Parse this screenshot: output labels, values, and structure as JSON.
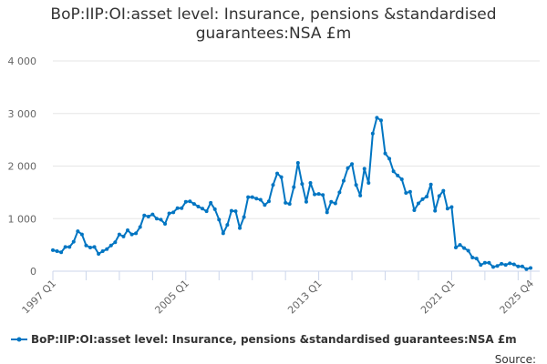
{
  "chart_data": {
    "type": "line",
    "title_line1": "BoP:IIP:OI:asset level: Insurance, pensions &standardised",
    "title_line2": "guarantees:NSA £m",
    "ylim": [
      0,
      4000
    ],
    "yticks": [
      0,
      1000,
      2000,
      3000,
      4000
    ],
    "ytick_labels": [
      "0",
      "1 000",
      "2 000",
      "3 000",
      "4 000"
    ],
    "x_start": "1997 Q1",
    "x_end": "2025 Q4",
    "xtick_labels": [
      {
        "label": "1997 Q1",
        "index": 0
      },
      {
        "label": "2005 Q1",
        "index": 32
      },
      {
        "label": "2013 Q1",
        "index": 64
      },
      {
        "label": "2021 Q1",
        "index": 96
      },
      {
        "label": "2025 Q4",
        "index": 115
      }
    ],
    "series": [
      {
        "name": "BoP:IIP:OI:asset level: Insurance, pensions &standardised guarantees:NSA £m",
        "color": "#0075c2",
        "values": [
          400,
          380,
          360,
          460,
          460,
          560,
          760,
          700,
          490,
          450,
          460,
          330,
          380,
          420,
          490,
          550,
          700,
          660,
          780,
          700,
          720,
          840,
          1060,
          1040,
          1080,
          1000,
          980,
          900,
          1100,
          1120,
          1200,
          1200,
          1320,
          1330,
          1280,
          1230,
          1190,
          1140,
          1300,
          1180,
          980,
          720,
          880,
          1150,
          1140,
          820,
          1030,
          1410,
          1410,
          1380,
          1360,
          1260,
          1330,
          1640,
          1860,
          1790,
          1300,
          1280,
          1600,
          2060,
          1660,
          1320,
          1680,
          1460,
          1470,
          1450,
          1120,
          1320,
          1290,
          1500,
          1720,
          1960,
          2040,
          1640,
          1440,
          1950,
          1680,
          2620,
          2920,
          2870,
          2240,
          2140,
          1900,
          1820,
          1750,
          1490,
          1510,
          1160,
          1290,
          1370,
          1420,
          1650,
          1150,
          1430,
          1530,
          1190,
          1220,
          450,
          500,
          440,
          390,
          260,
          240,
          120,
          160,
          160,
          80,
          100,
          140,
          120,
          150,
          130,
          90,
          90,
          40,
          60
        ]
      }
    ],
    "legend": "BoP:IIP:OI:asset level: Insurance, pensions &standardised guarantees:NSA £m",
    "legend_position": "bottom",
    "source": "Source:"
  }
}
